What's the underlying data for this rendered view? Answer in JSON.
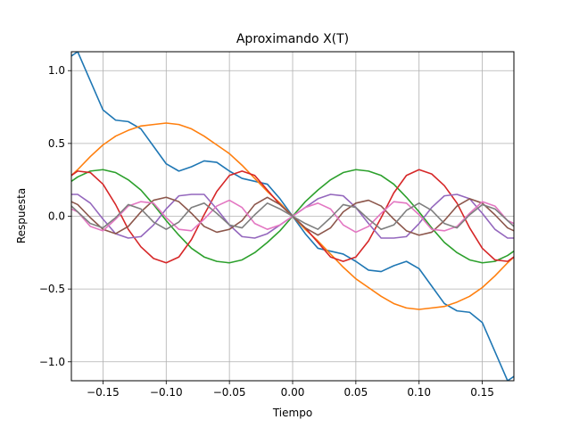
{
  "chart_data": {
    "type": "line",
    "title": "Aproximando X(T)",
    "xlabel": "Tiempo",
    "ylabel": "Respuesta",
    "xlim": [
      -0.175,
      0.175
    ],
    "ylim": [
      -1.13,
      1.13
    ],
    "grid": true,
    "xticks": [
      -0.15,
      -0.1,
      -0.05,
      0.0,
      0.05,
      0.1,
      0.15
    ],
    "xtick_labels": [
      "−0.15",
      "−0.10",
      "−0.05",
      "0.00",
      "0.05",
      "0.10",
      "0.15"
    ],
    "yticks": [
      -1.0,
      -0.5,
      0.0,
      0.5,
      1.0
    ],
    "ytick_labels": [
      "−1.0",
      "−0.5",
      "0.0",
      "0.5",
      "1.0"
    ],
    "x": [
      -0.175,
      -0.17,
      -0.16,
      -0.15,
      -0.14,
      -0.13,
      -0.12,
      -0.11,
      -0.1,
      -0.09,
      -0.08,
      -0.07,
      -0.06,
      -0.05,
      -0.04,
      -0.03,
      -0.02,
      -0.01,
      0.0,
      0.01,
      0.02,
      0.03,
      0.04,
      0.05,
      0.06,
      0.07,
      0.08,
      0.09,
      0.1,
      0.11,
      0.12,
      0.13,
      0.14,
      0.15,
      0.16,
      0.17,
      0.175
    ],
    "series": [
      {
        "color": "#1f77b4",
        "values": [
          1.1,
          1.13,
          0.93,
          0.73,
          0.66,
          0.65,
          0.6,
          0.48,
          0.36,
          0.31,
          0.34,
          0.38,
          0.37,
          0.31,
          0.26,
          0.24,
          0.22,
          0.12,
          0.0,
          -0.12,
          -0.22,
          -0.24,
          -0.26,
          -0.31,
          -0.37,
          -0.38,
          -0.34,
          -0.31,
          -0.36,
          -0.48,
          -0.6,
          -0.65,
          -0.66,
          -0.73,
          -0.93,
          -1.13,
          -1.1
        ]
      },
      {
        "color": "#ff7f0e",
        "values": [
          0.28,
          0.32,
          0.41,
          0.49,
          0.55,
          0.59,
          0.62,
          0.63,
          0.64,
          0.63,
          0.6,
          0.55,
          0.49,
          0.43,
          0.35,
          0.26,
          0.17,
          0.09,
          0.0,
          -0.09,
          -0.17,
          -0.26,
          -0.35,
          -0.43,
          -0.49,
          -0.55,
          -0.6,
          -0.63,
          -0.64,
          -0.63,
          -0.62,
          -0.59,
          -0.55,
          -0.49,
          -0.41,
          -0.32,
          -0.28
        ]
      },
      {
        "color": "#2ca02c",
        "values": [
          0.24,
          0.27,
          0.31,
          0.32,
          0.3,
          0.25,
          0.18,
          0.08,
          -0.03,
          -0.13,
          -0.22,
          -0.28,
          -0.31,
          -0.32,
          -0.3,
          -0.25,
          -0.18,
          -0.1,
          0.0,
          0.1,
          0.18,
          0.25,
          0.3,
          0.32,
          0.31,
          0.28,
          0.22,
          0.13,
          0.03,
          -0.08,
          -0.18,
          -0.25,
          -0.3,
          -0.32,
          -0.31,
          -0.27,
          -0.24
        ]
      },
      {
        "color": "#d62728",
        "values": [
          0.28,
          0.31,
          0.3,
          0.22,
          0.08,
          -0.09,
          -0.21,
          -0.29,
          -0.32,
          -0.28,
          -0.16,
          0.01,
          0.17,
          0.28,
          0.31,
          0.28,
          0.18,
          0.08,
          0.0,
          -0.08,
          -0.18,
          -0.28,
          -0.31,
          -0.28,
          -0.17,
          -0.01,
          0.16,
          0.28,
          0.32,
          0.29,
          0.21,
          0.09,
          -0.08,
          -0.22,
          -0.3,
          -0.31,
          -0.28
        ]
      },
      {
        "color": "#9467bd",
        "values": [
          0.15,
          0.15,
          0.09,
          -0.02,
          -0.12,
          -0.15,
          -0.14,
          -0.06,
          0.05,
          0.14,
          0.15,
          0.15,
          0.05,
          -0.06,
          -0.14,
          -0.15,
          -0.12,
          -0.06,
          0.0,
          0.06,
          0.12,
          0.15,
          0.14,
          0.06,
          -0.05,
          -0.15,
          -0.15,
          -0.14,
          -0.05,
          0.06,
          0.14,
          0.15,
          0.12,
          0.02,
          -0.09,
          -0.15,
          -0.15
        ]
      },
      {
        "color": "#8c564b",
        "values": [
          0.1,
          0.08,
          -0.01,
          -0.09,
          -0.12,
          -0.07,
          0.03,
          0.11,
          0.13,
          0.1,
          0.02,
          -0.07,
          -0.11,
          -0.09,
          -0.03,
          0.08,
          0.13,
          0.08,
          0.0,
          -0.08,
          -0.13,
          -0.08,
          0.03,
          0.09,
          0.11,
          0.07,
          -0.02,
          -0.1,
          -0.13,
          -0.11,
          -0.03,
          0.07,
          0.12,
          0.09,
          0.01,
          -0.08,
          -0.1
        ]
      },
      {
        "color": "#e377c2",
        "values": [
          0.05,
          0.03,
          -0.07,
          -0.1,
          -0.02,
          0.07,
          0.1,
          0.09,
          -0.01,
          -0.09,
          -0.1,
          -0.02,
          0.07,
          0.11,
          0.06,
          -0.05,
          -0.09,
          -0.06,
          0.0,
          0.06,
          0.09,
          0.05,
          -0.06,
          -0.11,
          -0.07,
          0.02,
          0.1,
          0.09,
          0.01,
          -0.09,
          -0.1,
          -0.07,
          0.02,
          0.1,
          0.07,
          -0.03,
          -0.05
        ]
      },
      {
        "color": "#7f7f7f",
        "values": [
          0.07,
          0.03,
          -0.05,
          -0.08,
          -0.01,
          0.08,
          0.05,
          -0.04,
          -0.09,
          -0.04,
          0.06,
          0.09,
          0.02,
          -0.06,
          -0.08,
          0.01,
          0.09,
          0.05,
          0.0,
          -0.05,
          -0.09,
          -0.01,
          0.08,
          0.06,
          -0.02,
          -0.09,
          -0.06,
          0.04,
          0.09,
          0.04,
          -0.05,
          -0.08,
          0.01,
          0.08,
          0.05,
          -0.03,
          -0.07
        ]
      }
    ]
  }
}
